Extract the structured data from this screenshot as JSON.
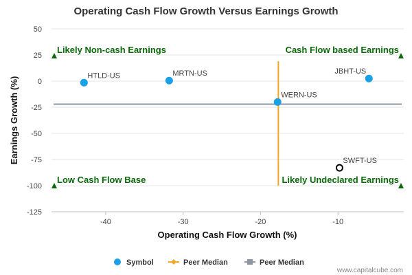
{
  "chart_data": {
    "type": "scatter",
    "title": "Operating Cash Flow Growth Versus Earnings Growth",
    "xlabel": "Operating Cash Flow Growth (%)",
    "ylabel": "Earnings Growth (%)",
    "xlim": [
      -47,
      -1.5
    ],
    "ylim": [
      -125,
      50
    ],
    "x_ticks": [
      -40,
      -30,
      -20,
      -10
    ],
    "y_ticks": [
      50,
      25,
      0,
      -25,
      -50,
      -75,
      -100,
      -125
    ],
    "grid": "horizontal",
    "points": [
      {
        "label": "HTLD-US",
        "x": -42.8,
        "y": -1.5,
        "style": "filled"
      },
      {
        "label": "MRTN-US",
        "x": -31.8,
        "y": 0.5,
        "style": "filled"
      },
      {
        "label": "WERN-US",
        "x": -17.8,
        "y": -20,
        "style": "filled"
      },
      {
        "label": "JBHT-US",
        "x": -6.0,
        "y": 2.5,
        "style": "filled"
      },
      {
        "label": "SWFT-US",
        "x": -9.8,
        "y": -83,
        "style": "hollow"
      }
    ],
    "peer_median": {
      "x": -17.7,
      "y": -22
    },
    "quadrant_labels": {
      "top_left": "Likely Non-cash Earnings",
      "top_right": "Cash Flow based Earnings",
      "bottom_left": "Low Cash Flow Base",
      "bottom_right": "Likely Undeclared Earnings"
    },
    "legend": {
      "placement": "bottom",
      "items": [
        {
          "label": "Symbol",
          "color": "#1aa0e6"
        },
        {
          "label": "Peer Median",
          "color": "#f5a623"
        },
        {
          "label": "Peer Median",
          "color": "#8e95a3"
        }
      ]
    },
    "colors": {
      "point": "#1aa0e6",
      "vertical_median": "#f5a623",
      "horizontal_median": "#8e95a3",
      "quadrant": "#0a6a0a"
    }
  },
  "credit": "www.capitalcube.com"
}
